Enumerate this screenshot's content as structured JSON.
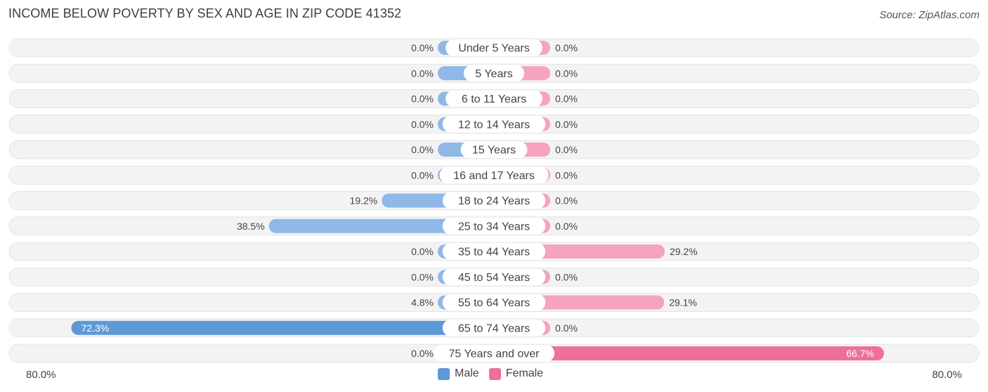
{
  "header": {
    "title": "INCOME BELOW POVERTY BY SEX AND AGE IN ZIP CODE 41352",
    "source": "Source: ZipAtlas.com"
  },
  "axis": {
    "left_label": "80.0%",
    "right_label": "80.0%"
  },
  "legend": {
    "male_label": "Male",
    "female_label": "Female"
  },
  "colors": {
    "male": "#8fb8e6",
    "male_strong": "#5f98d6",
    "female": "#f5a3bf",
    "female_strong": "#ee6f97",
    "row_bg": "#f1f1f1"
  },
  "chart_data": {
    "type": "bar",
    "orientation": "horizontal-diverging",
    "title": "INCOME BELOW POVERTY BY SEX AND AGE IN ZIP CODE 41352",
    "xlim": [
      -80,
      80
    ],
    "categories": [
      "Under 5 Years",
      "5 Years",
      "6 to 11 Years",
      "12 to 14 Years",
      "15 Years",
      "16 and 17 Years",
      "18 to 24 Years",
      "25 to 34 Years",
      "35 to 44 Years",
      "45 to 54 Years",
      "55 to 64 Years",
      "65 to 74 Years",
      "75 Years and over"
    ],
    "series": [
      {
        "name": "Male",
        "values": [
          0.0,
          0.0,
          0.0,
          0.0,
          0.0,
          0.0,
          19.2,
          38.5,
          0.0,
          0.0,
          4.8,
          72.3,
          0.0
        ],
        "labels": [
          "0.0%",
          "0.0%",
          "0.0%",
          "0.0%",
          "0.0%",
          "0.0%",
          "19.2%",
          "38.5%",
          "0.0%",
          "0.0%",
          "4.8%",
          "72.3%",
          "0.0%"
        ]
      },
      {
        "name": "Female",
        "values": [
          0.0,
          0.0,
          0.0,
          0.0,
          0.0,
          0.0,
          0.0,
          0.0,
          29.2,
          0.0,
          29.1,
          0.0,
          66.7
        ],
        "labels": [
          "0.0%",
          "0.0%",
          "0.0%",
          "0.0%",
          "0.0%",
          "0.0%",
          "0.0%",
          "0.0%",
          "29.2%",
          "0.0%",
          "29.1%",
          "0.0%",
          "66.7%"
        ]
      }
    ]
  }
}
